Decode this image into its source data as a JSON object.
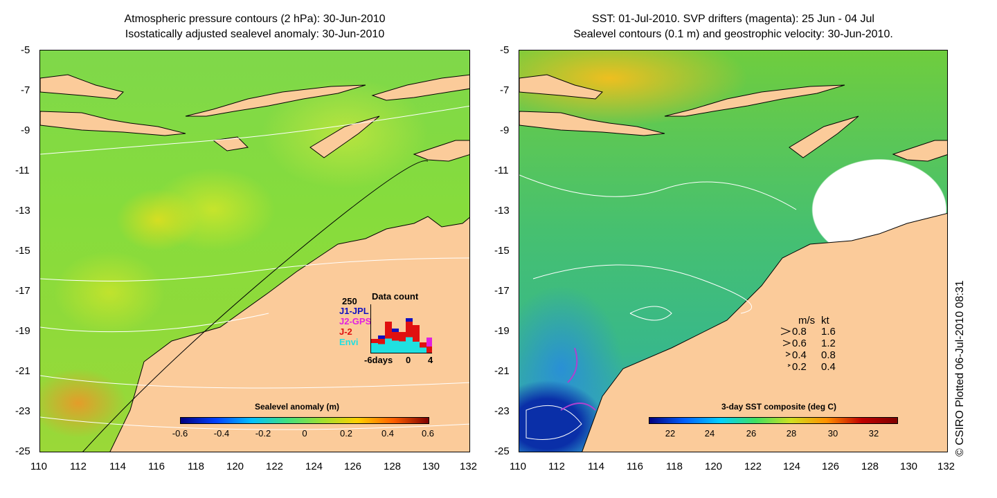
{
  "left_panel": {
    "title_line1": "Atmospheric pressure contours (2 hPa): 30-Jun-2010",
    "title_line2": "Isostatically adjusted sealevel anomaly: 30-Jun-2010",
    "colorbar_title": "Sealevel anomaly (m)",
    "colorbar_labels": [
      "-0.6",
      "-0.4",
      "-0.2",
      "0",
      "0.2",
      "0.4",
      "0.6"
    ],
    "colorbar_colors": [
      "#00007f",
      "#0040ff",
      "#00c0ff",
      "#40e080",
      "#a0e030",
      "#ffd000",
      "#ff6000",
      "#7f0000"
    ],
    "data_count": {
      "title": "Data count",
      "max_label": "250",
      "series_labels": [
        "J1-JPL",
        "J2-GPS",
        "J-2",
        "Envi"
      ],
      "series_colors": [
        "#1010c0",
        "#e020e0",
        "#e01010",
        "#20e0e0"
      ],
      "x_labels": [
        "-6days",
        "0",
        "4"
      ]
    }
  },
  "right_panel": {
    "title_line1": "SST: 01-Jul-2010. SVP drifters (magenta): 25 Jun - 04 Jul",
    "title_line2": "Sealevel contours (0.1 m) and geostrophic velocity: 30-Jun-2010.",
    "colorbar_title": "3-day SST composite (deg C)",
    "colorbar_labels": [
      "22",
      "24",
      "26",
      "28",
      "30",
      "32"
    ],
    "colorbar_colors": [
      "#00007f",
      "#0060ff",
      "#00d0ff",
      "#40e060",
      "#d0e020",
      "#ff9000",
      "#c00000",
      "#7f0000"
    ],
    "velocity_legend": {
      "header_ms": "m/s",
      "header_kt": "kt",
      "rows": [
        [
          "0.8",
          "1.6"
        ],
        [
          "0.6",
          "1.2"
        ],
        [
          "0.4",
          "0.8"
        ],
        [
          "0.2",
          "0.4"
        ]
      ]
    }
  },
  "axes": {
    "lat_labels": [
      "-5",
      "-7",
      "-9",
      "-11",
      "-13",
      "-15",
      "-17",
      "-19",
      "-21",
      "-23",
      "-25"
    ],
    "lon_labels": [
      "110",
      "112",
      "114",
      "116",
      "118",
      "120",
      "122",
      "124",
      "126",
      "128",
      "130",
      "132"
    ]
  },
  "copyright": "© CSIRO Plotted 06-Jul-2010 08:31",
  "colors": {
    "land": "#fbcb9a",
    "coast": "#000000",
    "contour": "#ffffff"
  }
}
